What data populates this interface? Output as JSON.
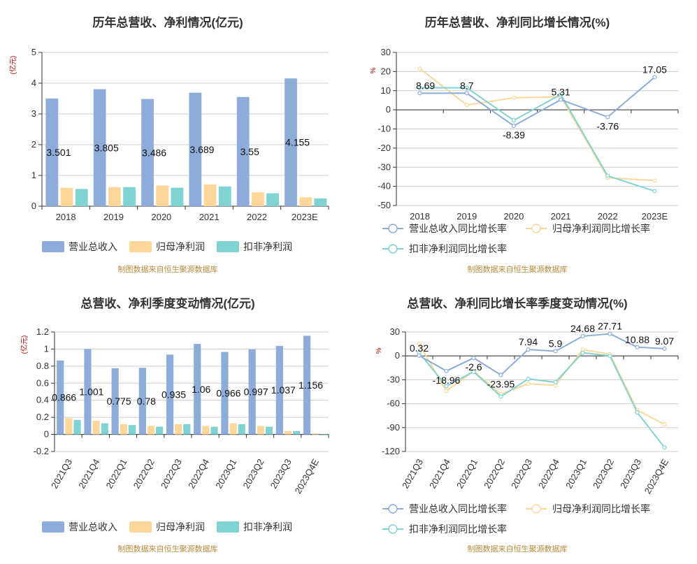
{
  "colors": {
    "revenue": "#8eacd9",
    "parent_net_profit": "#fdd79a",
    "deducted_net_profit": "#7fd3d3",
    "axis": "#333333",
    "grid": "#cccccc",
    "tick_text": "#333333",
    "unit_text": "#cc0000",
    "source_text": "#b58a3b",
    "title_text": "#333333"
  },
  "chart_data": [
    {
      "type": "bar",
      "title": "历年总营收、净利情况(亿元)",
      "ylabel": "(亿元)",
      "ylim": [
        0,
        5
      ],
      "yticks": [
        0,
        1,
        2,
        3,
        4,
        5
      ],
      "grid": true,
      "legend_placement": "bottom",
      "categories": [
        "2018",
        "2019",
        "2020",
        "2021",
        "2022",
        "2023E"
      ],
      "series": [
        {
          "name": "营业总收入",
          "values": [
            3.501,
            3.805,
            3.486,
            3.689,
            3.55,
            4.155
          ],
          "labels": [
            "3.501",
            "3.805",
            "3.486",
            "3.689",
            "3.55",
            "4.155"
          ]
        },
        {
          "name": "归母净利润",
          "values": [
            0.6,
            0.62,
            0.67,
            0.71,
            0.45,
            0.29
          ]
        },
        {
          "name": "扣非净利润",
          "values": [
            0.56,
            0.62,
            0.6,
            0.64,
            0.42,
            0.25
          ]
        }
      ],
      "source": "制图数据来自恒生聚源数据库"
    },
    {
      "type": "line",
      "title": "历年总营收、净利同比增长情况(%)",
      "ylabel": "%",
      "ylim": [
        -50,
        30
      ],
      "yticks": [
        30,
        20,
        10,
        0,
        -10,
        -20,
        -30,
        -40,
        -50
      ],
      "grid": true,
      "legend_placement": "bottom",
      "categories": [
        "2018",
        "2019",
        "2020",
        "2021",
        "2022",
        "2023E"
      ],
      "series": [
        {
          "name": "营业总收入同比增长率",
          "values": [
            8.69,
            8.7,
            -8.39,
            5.31,
            -3.76,
            17.05
          ],
          "labels": [
            "8.69",
            "8.7",
            "-8.39",
            "5.31",
            "-3.76",
            "17.05"
          ]
        },
        {
          "name": "归母净利润同比增长率",
          "values": [
            21.5,
            2.5,
            6.3,
            6.8,
            -35.5,
            -37
          ]
        },
        {
          "name": "扣非净利润同比增长率",
          "values": [
            11.5,
            11.5,
            -5.5,
            8,
            -34.5,
            -42.5
          ]
        }
      ],
      "source": "制图数据来自恒生聚源数据库"
    },
    {
      "type": "bar",
      "title": "总营收、净利季度变动情况(亿元)",
      "ylabel": "(亿元)",
      "ylim": [
        -0.2,
        1.2
      ],
      "yticks": [
        1.2,
        1,
        0.8,
        0.6,
        0.4,
        0.2,
        0,
        -0.2
      ],
      "grid": true,
      "legend_placement": "bottom",
      "categories": [
        "2021Q3",
        "2021Q4",
        "2022Q1",
        "2022Q2",
        "2022Q3",
        "2022Q4",
        "2023Q1",
        "2023Q2",
        "2023Q3",
        "2023Q4E"
      ],
      "series": [
        {
          "name": "营业总收入",
          "values": [
            0.866,
            1.001,
            0.775,
            0.78,
            0.935,
            1.06,
            0.966,
            0.997,
            1.037,
            1.156
          ],
          "labels": [
            "0.866",
            "1.001",
            "0.775",
            "0.78",
            "0.935",
            "1.06",
            "0.966",
            "0.997",
            "1.037",
            "1.156"
          ]
        },
        {
          "name": "归母净利润",
          "values": [
            0.19,
            0.16,
            0.12,
            0.1,
            0.12,
            0.1,
            0.13,
            0.1,
            0.04,
            0.01
          ]
        },
        {
          "name": "扣非净利润",
          "values": [
            0.17,
            0.13,
            0.11,
            0.09,
            0.12,
            0.09,
            0.12,
            0.09,
            0.04,
            -0.01
          ]
        }
      ],
      "source": "制图数据来自恒生聚源数据库"
    },
    {
      "type": "line",
      "title": "总营收、净利同比增长率季度变动情况(%)",
      "ylabel": "%",
      "ylim": [
        -120,
        30
      ],
      "yticks": [
        30,
        0,
        -30,
        -60,
        -90,
        -120
      ],
      "grid": true,
      "legend_placement": "bottom",
      "categories": [
        "2021Q3",
        "2021Q4",
        "2022Q1",
        "2022Q2",
        "2022Q3",
        "2022Q4",
        "2023Q1",
        "2023Q2",
        "2023Q3",
        "2023Q4E"
      ],
      "series": [
        {
          "name": "营业总收入同比增长率",
          "values": [
            0.32,
            -18.96,
            -2.6,
            -23.95,
            7.94,
            5.9,
            24.68,
            27.71,
            10.88,
            9.07
          ],
          "labels": [
            "0.32",
            "-18.96",
            "-2.6",
            "-23.95",
            "7.94",
            "5.9",
            "24.68",
            "27.71",
            "10.88",
            "9.07"
          ]
        },
        {
          "name": "归母净利润同比增长率",
          "values": [
            15,
            -44,
            -19,
            -48,
            -35,
            -37,
            8,
            2,
            -68,
            -86
          ]
        },
        {
          "name": "扣非净利润同比增长率",
          "values": [
            4,
            -38,
            -20,
            -51,
            -29,
            -33,
            4,
            0,
            -71,
            -115
          ]
        }
      ],
      "source": "制图数据来自恒生聚源数据库"
    }
  ]
}
